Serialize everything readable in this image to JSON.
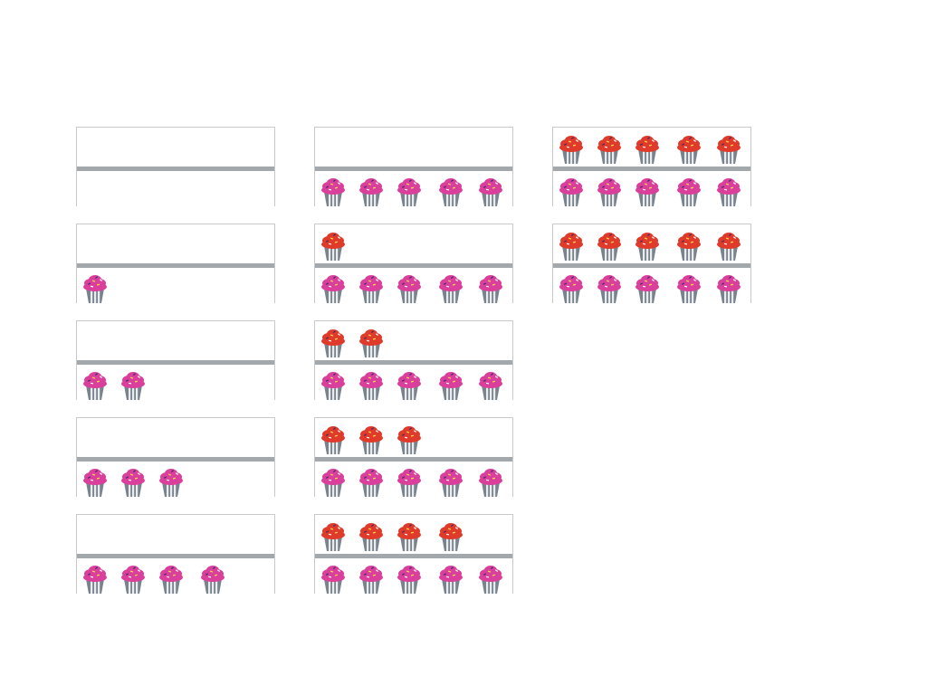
{
  "colors": {
    "top_cupcake_frosting": "#e03a2a",
    "bottom_cupcake_frosting": "#d93f9b",
    "wrapper": "#78838d",
    "shelf": "#a3a8ad",
    "frame_border": "#c9c9c9"
  },
  "icons": {
    "top": "red-cupcake-icon",
    "bottom": "pink-cupcake-icon"
  },
  "cards": [
    {
      "top_count": 0,
      "bottom_count": 0
    },
    {
      "top_count": 0,
      "bottom_count": 1
    },
    {
      "top_count": 0,
      "bottom_count": 2
    },
    {
      "top_count": 0,
      "bottom_count": 3
    },
    {
      "top_count": 0,
      "bottom_count": 4
    },
    {
      "top_count": 0,
      "bottom_count": 5
    },
    {
      "top_count": 1,
      "bottom_count": 5
    },
    {
      "top_count": 2,
      "bottom_count": 5
    },
    {
      "top_count": 3,
      "bottom_count": 5
    },
    {
      "top_count": 4,
      "bottom_count": 5
    },
    {
      "top_count": 5,
      "bottom_count": 5
    },
    {
      "top_count": 5,
      "bottom_count": 5
    }
  ]
}
